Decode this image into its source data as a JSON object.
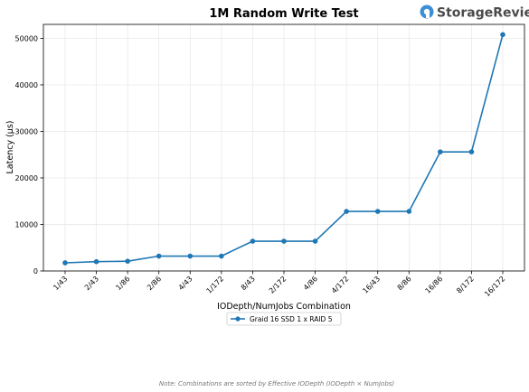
{
  "chart_data": {
    "type": "line",
    "title": "1M Random Write Test",
    "xlabel": "IODepth/NumJobs Combination",
    "ylabel": "Latency (μs)",
    "categories": [
      "1/43",
      "2/43",
      "1/86",
      "2/86",
      "4/43",
      "1/172",
      "8/43",
      "2/172",
      "4/86",
      "4/172",
      "16/43",
      "8/86",
      "16/86",
      "8/172",
      "16/172"
    ],
    "series": [
      {
        "name": "Graid 16 SSD 1 x RAID 5",
        "color": "#1f77b4",
        "values": [
          1750,
          2000,
          2100,
          3200,
          3200,
          3200,
          6400,
          6400,
          6400,
          12800,
          12800,
          12800,
          25600,
          25600,
          50800
        ]
      }
    ],
    "ylim": [
      0,
      53000
    ],
    "yticks": [
      0,
      10000,
      20000,
      30000,
      40000,
      50000
    ],
    "grid": true,
    "legend_position": "bottom-center",
    "note": "Note: Combinations are sorted by Effective IODepth (IODepth × NumJobs)"
  },
  "brand": {
    "logo_text": "StorageReview",
    "logo_icon": "storagereview-logo-icon",
    "logo_color": "#3a8fd6"
  }
}
